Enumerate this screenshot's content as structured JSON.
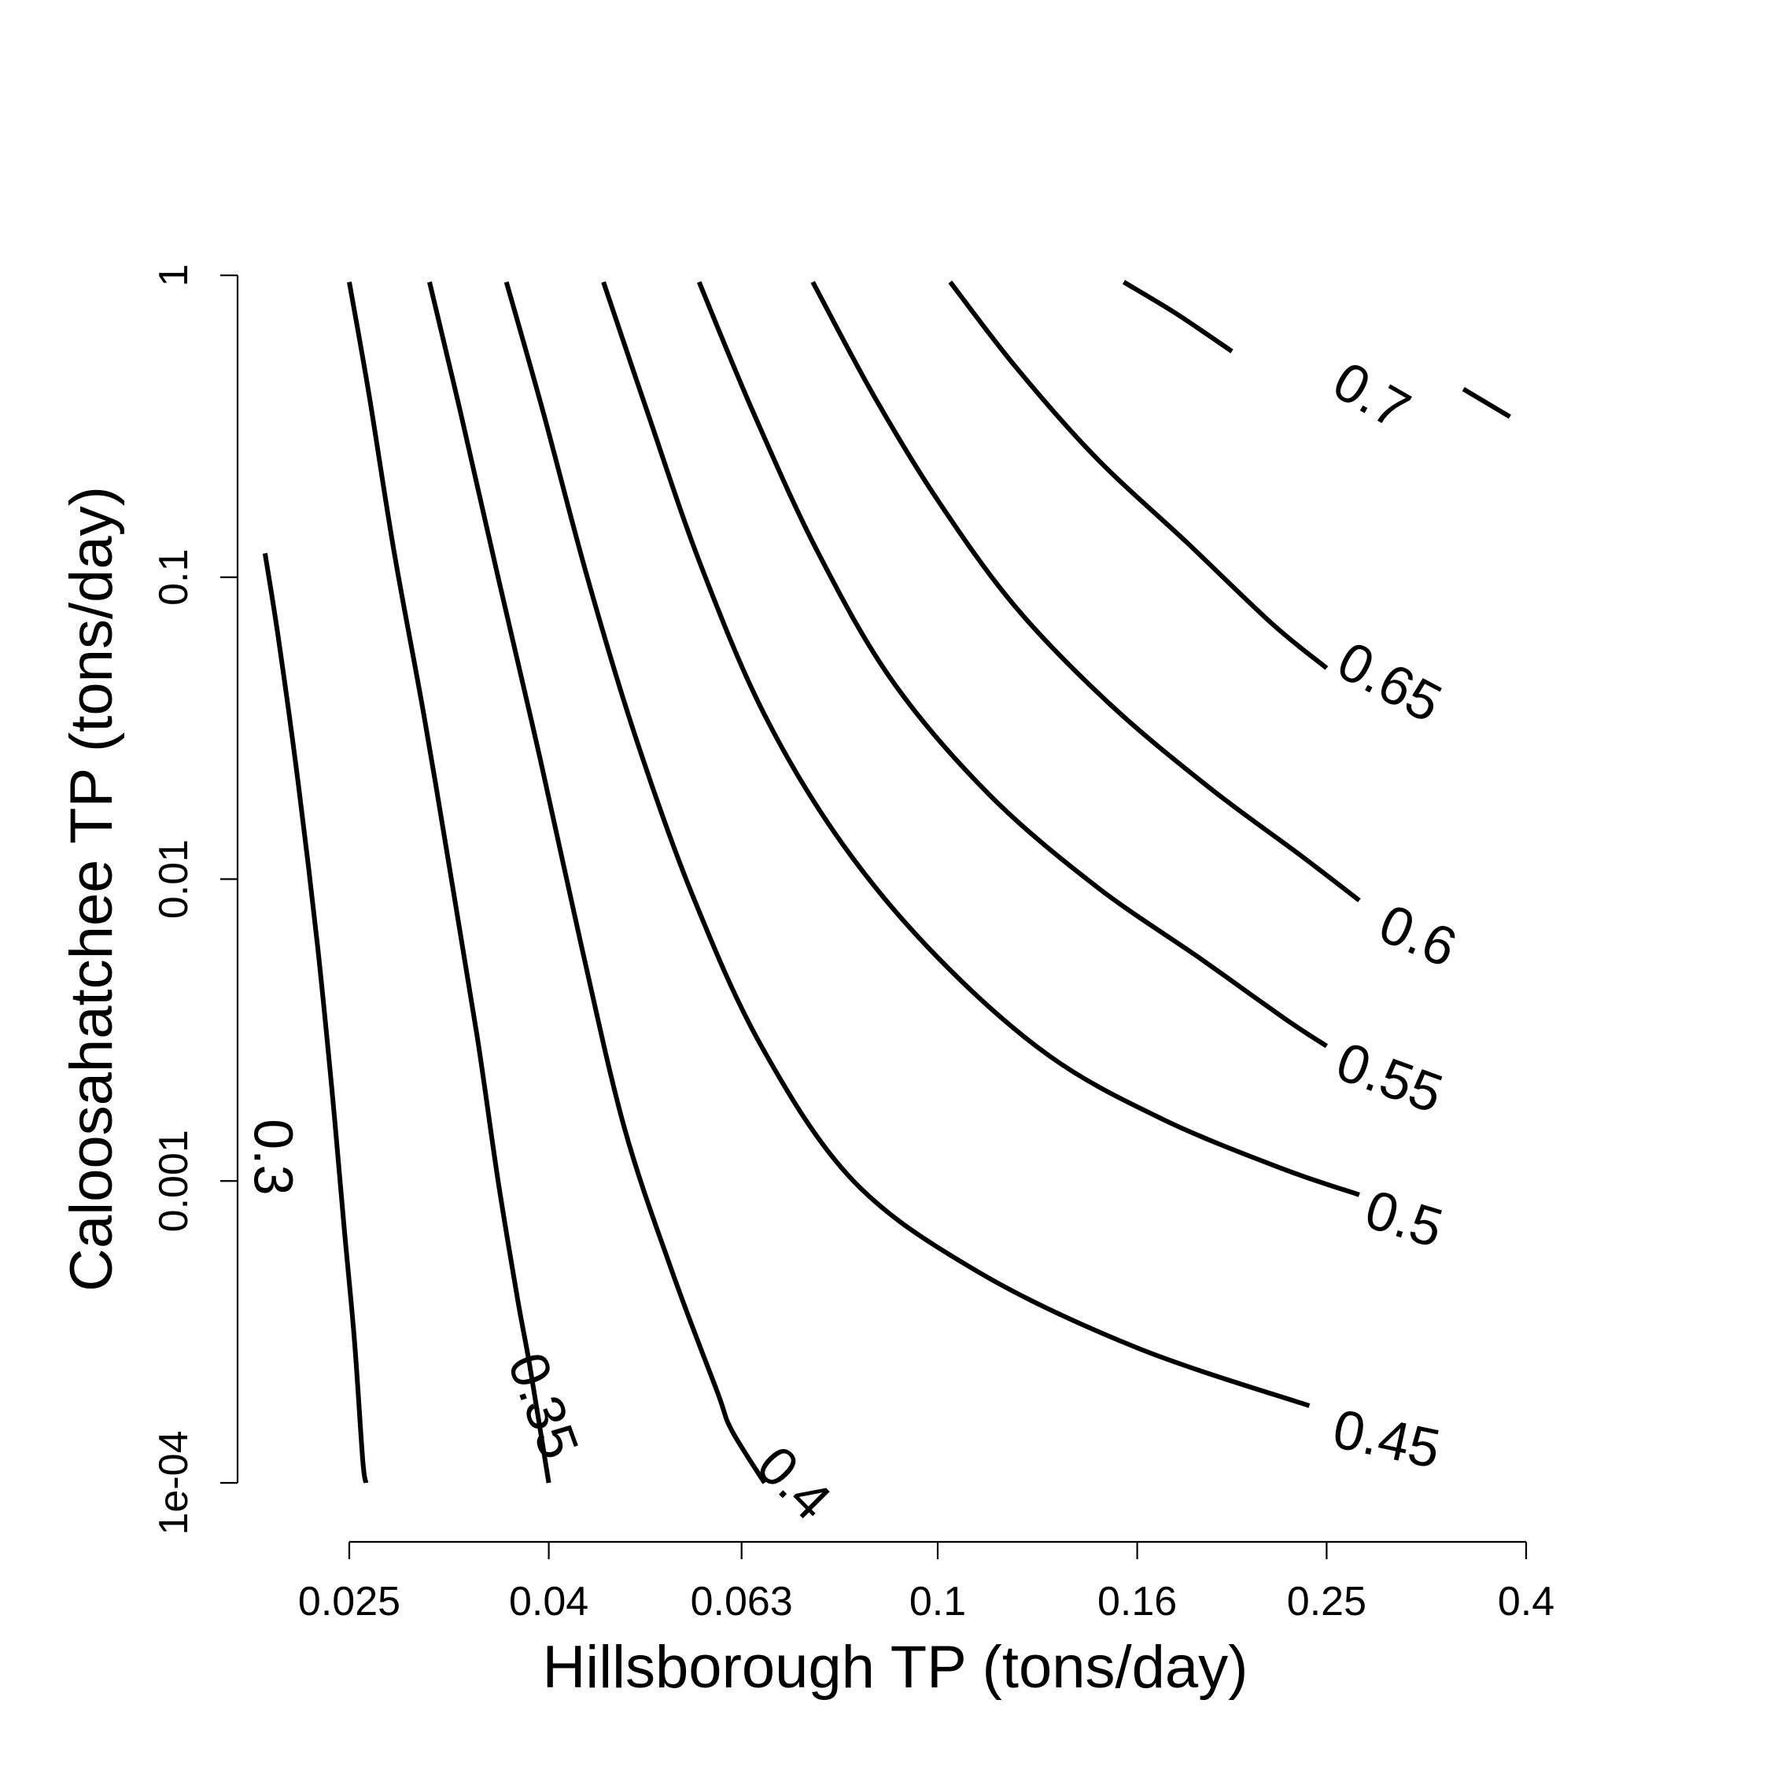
{
  "chart_data": {
    "type": "contour",
    "title": "",
    "xlabel": "Hillsborough TP (tons/day)",
    "ylabel": "Caloosahatchee TP (tons/day)",
    "x_scale": "log",
    "y_scale": "log",
    "xlim": [
      0.02,
      0.4
    ],
    "ylim": [
      0.0001,
      1
    ],
    "x_ticks": [
      {
        "value": 0.025,
        "label": "0.025"
      },
      {
        "value": 0.04,
        "label": "0.04"
      },
      {
        "value": 0.063,
        "label": "0.063"
      },
      {
        "value": 0.1,
        "label": "0.1"
      },
      {
        "value": 0.16,
        "label": "0.16"
      },
      {
        "value": 0.25,
        "label": "0.25"
      },
      {
        "value": 0.4,
        "label": "0.4"
      }
    ],
    "y_ticks": [
      {
        "value": 0.0001,
        "label": "1e-04"
      },
      {
        "value": 0.001,
        "label": "0.001"
      },
      {
        "value": 0.01,
        "label": "0.01"
      },
      {
        "value": 0.1,
        "label": "0.1"
      },
      {
        "value": 1,
        "label": "1"
      }
    ],
    "contours": [
      {
        "level": 0.3,
        "label": "0.3",
        "points": [
          [
            0.0205,
            0.12
          ],
          [
            0.0212,
            0.06
          ],
          [
            0.0222,
            0.02
          ],
          [
            0.0232,
            0.006
          ],
          [
            0.024,
            0.002
          ],
          [
            0.0247,
            0.0007
          ],
          [
            0.0253,
            0.0003
          ],
          [
            0.0258,
            0.00012
          ],
          [
            0.026,
            0.0001
          ]
        ]
      },
      {
        "level": 0.35,
        "label": "0.35",
        "points": [
          [
            0.025,
            0.95
          ],
          [
            0.0262,
            0.4
          ],
          [
            0.0278,
            0.12
          ],
          [
            0.0298,
            0.035
          ],
          [
            0.0318,
            0.01
          ],
          [
            0.0338,
            0.003
          ],
          [
            0.0355,
            0.001
          ],
          [
            0.0372,
            0.0004
          ],
          [
            0.0382,
            0.00025
          ],
          [
            0.04,
            0.0001
          ]
        ]
      },
      {
        "level": 0.4,
        "label": "0.4",
        "points": [
          [
            0.0302,
            0.95
          ],
          [
            0.0325,
            0.35
          ],
          [
            0.0355,
            0.1
          ],
          [
            0.0392,
            0.025
          ],
          [
            0.0432,
            0.006
          ],
          [
            0.0478,
            0.0015
          ],
          [
            0.0535,
            0.0005
          ],
          [
            0.0595,
            0.0002
          ],
          [
            0.0615,
            0.00015
          ],
          [
            0.0665,
            0.0001
          ]
        ]
      },
      {
        "level": 0.45,
        "label": "0.45",
        "points": [
          [
            0.0362,
            0.95
          ],
          [
            0.0395,
            0.35
          ],
          [
            0.0438,
            0.1
          ],
          [
            0.049,
            0.03
          ],
          [
            0.056,
            0.009
          ],
          [
            0.066,
            0.0028
          ],
          [
            0.082,
            0.001
          ],
          [
            0.11,
            0.0005
          ],
          [
            0.16,
            0.00028
          ],
          [
            0.24,
            0.00018
          ]
        ]
      },
      {
        "level": 0.5,
        "label": "0.5",
        "points": [
          [
            0.0455,
            0.95
          ],
          [
            0.0505,
            0.35
          ],
          [
            0.0572,
            0.11
          ],
          [
            0.0665,
            0.035
          ],
          [
            0.08,
            0.013
          ],
          [
            0.1,
            0.0055
          ],
          [
            0.13,
            0.0026
          ],
          [
            0.17,
            0.0016
          ],
          [
            0.225,
            0.0011
          ],
          [
            0.27,
            0.0009
          ]
        ]
      },
      {
        "level": 0.55,
        "label": "0.55",
        "points": [
          [
            0.057,
            0.95
          ],
          [
            0.0648,
            0.35
          ],
          [
            0.0755,
            0.12
          ],
          [
            0.09,
            0.045
          ],
          [
            0.113,
            0.019
          ],
          [
            0.145,
            0.0095
          ],
          [
            0.185,
            0.0055
          ],
          [
            0.228,
            0.0034
          ],
          [
            0.25,
            0.0028
          ]
        ]
      },
      {
        "level": 0.6,
        "label": "0.6",
        "points": [
          [
            0.0745,
            0.95
          ],
          [
            0.086,
            0.4
          ],
          [
            0.1,
            0.18
          ],
          [
            0.12,
            0.08
          ],
          [
            0.15,
            0.038
          ],
          [
            0.19,
            0.02
          ],
          [
            0.235,
            0.012
          ],
          [
            0.27,
            0.0085
          ]
        ]
      },
      {
        "level": 0.65,
        "label": "0.65",
        "points": [
          [
            0.103,
            0.95
          ],
          [
            0.12,
            0.5
          ],
          [
            0.145,
            0.25
          ],
          [
            0.18,
            0.13
          ],
          [
            0.22,
            0.07
          ],
          [
            0.25,
            0.05
          ]
        ]
      },
      {
        "level": 0.7,
        "label": "0.7",
        "points": [
          [
            0.155,
            0.95
          ],
          [
            0.175,
            0.75
          ],
          [
            0.2,
            0.56
          ]
        ]
      },
      {
        "level": 0.7,
        "label": "",
        "points": [
          [
            0.345,
            0.42
          ],
          [
            0.385,
            0.34
          ]
        ]
      }
    ],
    "labels": [
      {
        "text": "0.3",
        "x": 0.0209,
        "y": 0.0012,
        "angle": 90
      },
      {
        "text": "0.35",
        "x": 0.0395,
        "y": 0.00018,
        "angle": 70
      },
      {
        "text": "0.4",
        "x": 0.0713,
        "y": 0.0001,
        "angle": 45
      },
      {
        "text": "0.45",
        "x": 0.288,
        "y": 0.00014,
        "angle": 12
      },
      {
        "text": "0.5",
        "x": 0.3,
        "y": 0.00075,
        "angle": 17
      },
      {
        "text": "0.55",
        "x": 0.29,
        "y": 0.0022,
        "angle": 20
      },
      {
        "text": "0.6",
        "x": 0.31,
        "y": 0.0065,
        "angle": 23
      },
      {
        "text": "0.65",
        "x": 0.29,
        "y": 0.045,
        "angle": 28
      },
      {
        "text": "0.7",
        "x": 0.278,
        "y": 0.4,
        "angle": 30
      }
    ],
    "legend": "none",
    "grid": false
  }
}
